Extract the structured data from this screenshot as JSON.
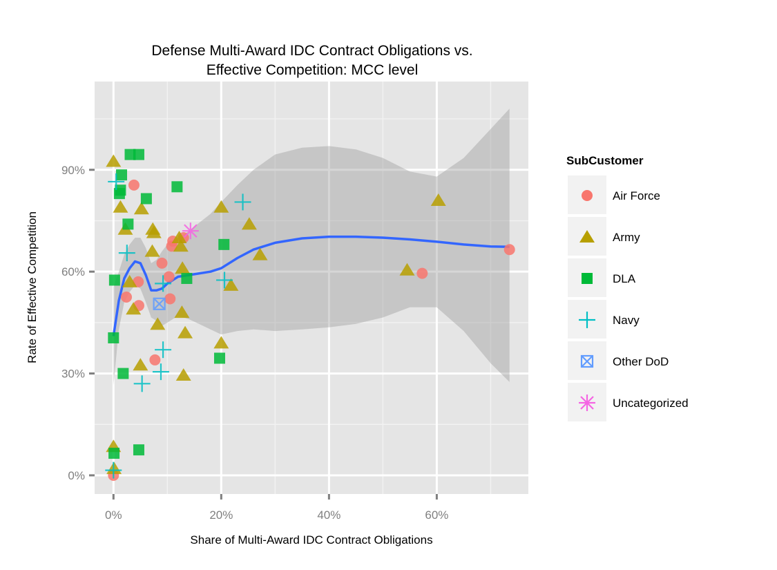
{
  "chart_data": {
    "type": "scatter",
    "title": [
      "Defense Multi-Award IDC Contract Obligations vs.",
      "Effective Competition: MCC level"
    ],
    "xlabel": "Share of Multi-Award IDC Contract Obligations",
    "ylabel": "Rate of Effective Competition",
    "xlim": [
      -0.035,
      0.77
    ],
    "ylim": [
      -0.055,
      1.16
    ],
    "x_ticks": [
      0,
      0.2,
      0.4,
      0.6
    ],
    "x_tick_labels": [
      "0%",
      "20%",
      "40%",
      "60%"
    ],
    "y_ticks": [
      0,
      0.3,
      0.6,
      0.9
    ],
    "y_tick_labels": [
      "0%",
      "30%",
      "60%",
      "90%"
    ],
    "grid": true,
    "legend": {
      "title": "SubCustomer",
      "placement": "right",
      "entries": [
        "Air Force",
        "Army",
        "DLA",
        "Navy",
        "Other DoD",
        "Uncategorized"
      ]
    },
    "series": [
      {
        "name": "Air Force",
        "color": "#F8766D",
        "shape": "circle",
        "points": [
          [
            0.0,
            0.0
          ],
          [
            0.038,
            0.855
          ],
          [
            0.046,
            0.57
          ],
          [
            0.047,
            0.5
          ],
          [
            0.024,
            0.525
          ],
          [
            0.09,
            0.625
          ],
          [
            0.103,
            0.585
          ],
          [
            0.11,
            0.69
          ],
          [
            0.108,
            0.675
          ],
          [
            0.105,
            0.52
          ],
          [
            0.13,
            0.7
          ],
          [
            0.077,
            0.34
          ],
          [
            0.573,
            0.595
          ],
          [
            0.735,
            0.665
          ]
        ]
      },
      {
        "name": "Army",
        "color": "#B79F00",
        "shape": "triangle",
        "points": [
          [
            0.0,
            0.925
          ],
          [
            0.013,
            0.79
          ],
          [
            0.022,
            0.725
          ],
          [
            0.03,
            0.57
          ],
          [
            0.037,
            0.49
          ],
          [
            0.052,
            0.785
          ],
          [
            0.073,
            0.725
          ],
          [
            0.075,
            0.715
          ],
          [
            0.072,
            0.66
          ],
          [
            0.082,
            0.445
          ],
          [
            0.05,
            0.325
          ],
          [
            0.122,
            0.7
          ],
          [
            0.125,
            0.675
          ],
          [
            0.128,
            0.61
          ],
          [
            0.127,
            0.48
          ],
          [
            0.133,
            0.42
          ],
          [
            0.13,
            0.295
          ],
          [
            0.2,
            0.79
          ],
          [
            0.2,
            0.39
          ],
          [
            0.252,
            0.74
          ],
          [
            0.218,
            0.56
          ],
          [
            0.272,
            0.65
          ],
          [
            0.545,
            0.605
          ],
          [
            0.603,
            0.81
          ],
          [
            0.0,
            0.085
          ],
          [
            0.001,
            0.02
          ]
        ]
      },
      {
        "name": "DLA",
        "color": "#00BA38",
        "shape": "square",
        "points": [
          [
            0.015,
            0.885
          ],
          [
            0.013,
            0.84
          ],
          [
            0.011,
            0.83
          ],
          [
            0.031,
            0.945
          ],
          [
            0.047,
            0.945
          ],
          [
            0.061,
            0.815
          ],
          [
            0.027,
            0.74
          ],
          [
            0.002,
            0.575
          ],
          [
            0.0,
            0.405
          ],
          [
            0.018,
            0.3
          ],
          [
            0.118,
            0.85
          ],
          [
            0.136,
            0.58
          ],
          [
            0.205,
            0.68
          ],
          [
            0.197,
            0.345
          ],
          [
            0.001,
            0.065
          ],
          [
            0.047,
            0.075
          ]
        ]
      },
      {
        "name": "Navy",
        "color": "#00BFC4",
        "shape": "plus",
        "points": [
          [
            0.005,
            0.865
          ],
          [
            0.025,
            0.655
          ],
          [
            0.092,
            0.565
          ],
          [
            0.092,
            0.37
          ],
          [
            0.088,
            0.305
          ],
          [
            0.053,
            0.27
          ],
          [
            0.206,
            0.575
          ],
          [
            0.24,
            0.805
          ],
          [
            0.0,
            0.015
          ]
        ]
      },
      {
        "name": "Other DoD",
        "color": "#619CFF",
        "shape": "square-cross",
        "points": [
          [
            0.085,
            0.505
          ]
        ]
      },
      {
        "name": "Uncategorized",
        "color": "#F564E3",
        "shape": "asterisk",
        "points": [
          [
            0.143,
            0.72
          ]
        ]
      }
    ],
    "smooth": {
      "color": "#3366FF",
      "x": [
        0.0,
        0.01,
        0.02,
        0.03,
        0.04,
        0.05,
        0.06,
        0.07,
        0.08,
        0.09,
        0.1,
        0.12,
        0.14,
        0.16,
        0.18,
        0.2,
        0.23,
        0.26,
        0.3,
        0.35,
        0.4,
        0.45,
        0.5,
        0.55,
        0.6,
        0.65,
        0.7,
        0.735
      ],
      "y": [
        0.41,
        0.515,
        0.58,
        0.61,
        0.63,
        0.625,
        0.59,
        0.545,
        0.545,
        0.55,
        0.565,
        0.585,
        0.59,
        0.595,
        0.6,
        0.61,
        0.64,
        0.665,
        0.685,
        0.698,
        0.703,
        0.703,
        0.7,
        0.695,
        0.688,
        0.68,
        0.674,
        0.673
      ],
      "ci_upper": [
        0.555,
        0.6,
        0.65,
        0.68,
        0.7,
        0.7,
        0.67,
        0.625,
        0.635,
        0.66,
        0.68,
        0.7,
        0.72,
        0.745,
        0.77,
        0.805,
        0.855,
        0.9,
        0.945,
        0.965,
        0.97,
        0.96,
        0.935,
        0.895,
        0.88,
        0.935,
        1.02,
        1.08
      ],
      "ci_lower": [
        0.265,
        0.43,
        0.51,
        0.54,
        0.56,
        0.55,
        0.51,
        0.465,
        0.455,
        0.44,
        0.45,
        0.47,
        0.46,
        0.445,
        0.43,
        0.415,
        0.425,
        0.43,
        0.425,
        0.43,
        0.436,
        0.446,
        0.465,
        0.495,
        0.495,
        0.425,
        0.33,
        0.275
      ]
    }
  }
}
